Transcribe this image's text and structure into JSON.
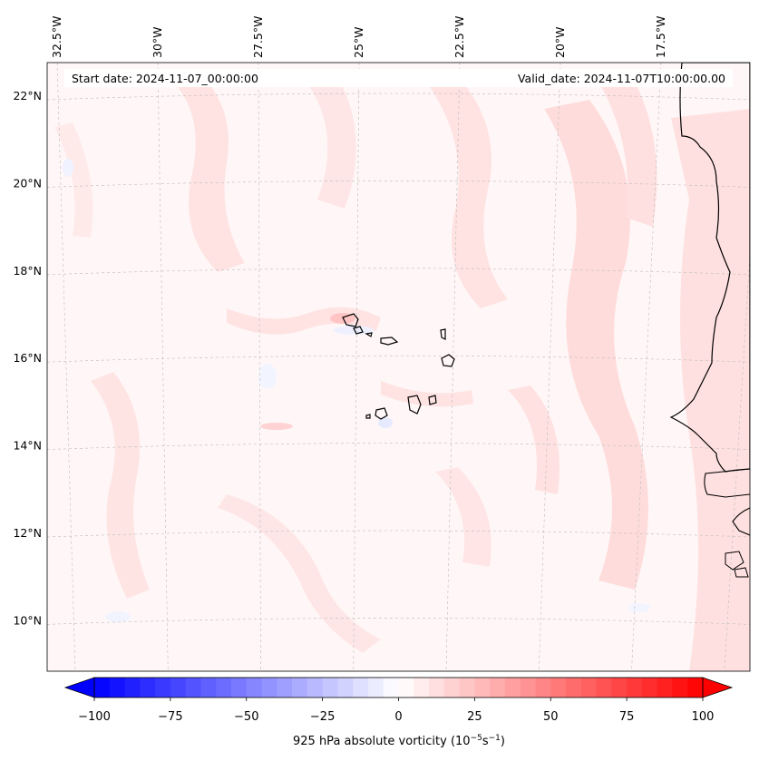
{
  "header": {
    "start_date": "Start date: 2024-11-07_00:00:00",
    "valid_date": "Valid_date: 2024-11-07T10:00:00.00"
  },
  "axes": {
    "lon_labels": [
      {
        "lon": -32.5,
        "text": "32.5°W"
      },
      {
        "lon": -30.0,
        "text": "30°W"
      },
      {
        "lon": -27.5,
        "text": "27.5°W"
      },
      {
        "lon": -25.0,
        "text": "25°W"
      },
      {
        "lon": -22.5,
        "text": "22.5°W"
      },
      {
        "lon": -20.0,
        "text": "20°W"
      },
      {
        "lon": -17.5,
        "text": "17.5°W"
      }
    ],
    "lat_labels": [
      {
        "lat": 22,
        "text": "22°N"
      },
      {
        "lat": 20,
        "text": "20°N"
      },
      {
        "lat": 18,
        "text": "18°N"
      },
      {
        "lat": 16,
        "text": "16°N"
      },
      {
        "lat": 14,
        "text": "14°N"
      },
      {
        "lat": 12,
        "text": "12°N"
      },
      {
        "lat": 10,
        "text": "10°N"
      }
    ]
  },
  "colorbar": {
    "min": -100,
    "max": 100,
    "step": 5,
    "ticks": [
      "−100",
      "−75",
      "−50",
      "−25",
      "0",
      "25",
      "50",
      "75",
      "100"
    ],
    "tick_values": [
      -100,
      -75,
      -50,
      -25,
      0,
      25,
      50,
      75,
      100
    ],
    "title_main": "925 hPa absolute vorticity (10",
    "title_exp1": "−5",
    "title_mid": "s",
    "title_exp2": "−1",
    "title_end": ")",
    "colormap": "bwr",
    "color_low": "#0000ff",
    "color_mid": "#ffffff",
    "color_high": "#ff0000"
  },
  "map": {
    "field": "925 hPa absolute vorticity",
    "background_color": "#fff5f5",
    "land_labels": []
  }
}
